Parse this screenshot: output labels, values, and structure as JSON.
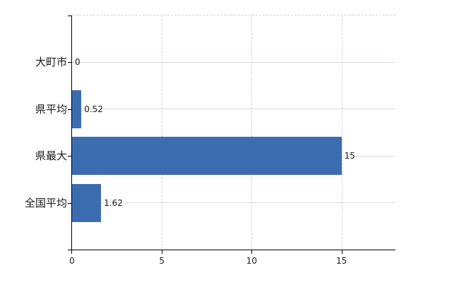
{
  "chart_data": {
    "type": "bar",
    "orientation": "horizontal",
    "categories": [
      "大町市",
      "県平均",
      "県最大",
      "全国平均"
    ],
    "values": [
      0,
      0.52,
      15,
      1.62
    ],
    "data_labels": [
      "0",
      "0.52",
      "15",
      "1.62"
    ],
    "x_ticks": [
      0,
      5,
      10,
      15
    ],
    "x_tick_labels": [
      "0",
      "5",
      "10",
      "15"
    ],
    "xlim": [
      0,
      18
    ],
    "ylabel": "",
    "xlabel": "",
    "title": "",
    "legend": "none",
    "layout_hints": {
      "value_label_position": "outside-end",
      "grid_vertical": "dashed-at-x-ticks",
      "grid_horizontal": "solid-at-category-centers",
      "plot_top_border": "dashed"
    },
    "colors": {
      "bar": "#3c6cb0",
      "h_gridline": "#d6ded4",
      "v_gridline": "#d4d4d4",
      "axis": "#000000",
      "text": "#1a1a1a",
      "background": "#ffffff"
    }
  }
}
